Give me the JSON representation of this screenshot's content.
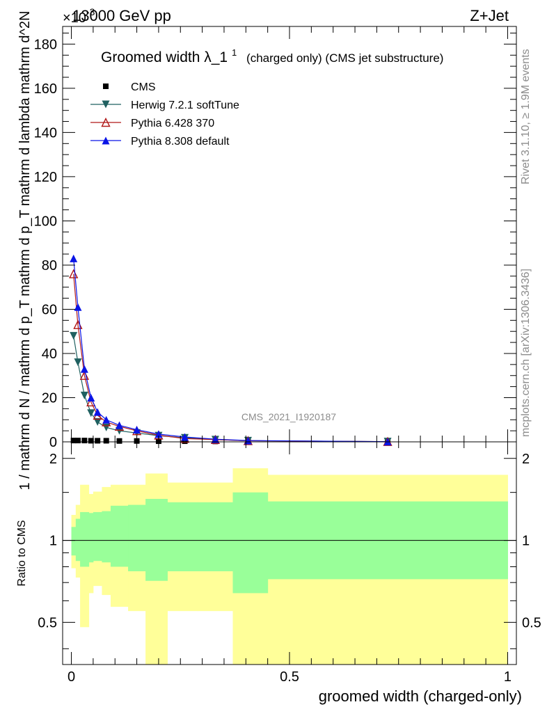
{
  "header": {
    "energy_label": "13000 GeV pp",
    "process_label": "Z+Jet",
    "exponent_label": "×10",
    "exponent_power": "-3"
  },
  "side_labels": {
    "rivet": "Rivet 3.1.10, ≥ 1.9M events",
    "mcplots": "mcplots.cern.ch [arXiv:1306.3436]"
  },
  "watermark": "CMS_2021_I1920187",
  "chart_data": [
    {
      "type": "line",
      "panel": "main",
      "title": "Groomed width",
      "title_symbol": "λ_1",
      "title_sup": "1",
      "title_suffix": "(charged only) (CMS jet substructure)",
      "ylabel": "1 / mathrm d N / mathrm d p_T mathrm d p_T mathrm d lambda mathrm d^2N",
      "xlim": [
        -0.02,
        1.02
      ],
      "ylim": [
        0,
        188
      ],
      "yticks": [
        0,
        20,
        40,
        60,
        80,
        100,
        120,
        140,
        160,
        180
      ],
      "x": [
        0.005,
        0.015,
        0.03,
        0.045,
        0.06,
        0.08,
        0.11,
        0.15,
        0.2,
        0.26,
        0.33,
        0.405,
        0.725
      ],
      "series": [
        {
          "name": "CMS",
          "color": "#000000",
          "marker": "square",
          "values": [
            0.6,
            0.6,
            0.6,
            0.5,
            0.5,
            0.5,
            0.4,
            0.4,
            0.3,
            0.3,
            0.2,
            0.2,
            0.1
          ]
        },
        {
          "name": "Herwig 7.2.1 softTune",
          "color": "#1f6060",
          "marker": "triangle-down",
          "values": [
            48,
            36,
            21,
            13,
            9,
            6.5,
            5,
            4,
            2.8,
            1.8,
            1,
            0.5,
            0.1
          ]
        },
        {
          "name": "Pythia 6.428 370",
          "color": "#b01818",
          "marker": "triangle-up-open",
          "values": [
            76,
            53,
            30,
            18,
            12,
            9,
            7,
            5,
            3,
            1.5,
            1,
            0.5,
            0.1
          ]
        },
        {
          "name": "Pythia 8.308 default",
          "color": "#0a14e6",
          "marker": "triangle-up",
          "values": [
            83,
            61,
            33,
            20,
            13.5,
            10,
            7.5,
            5.5,
            3.5,
            2.2,
            1.2,
            0.6,
            0.1
          ]
        }
      ]
    },
    {
      "type": "area",
      "panel": "ratio",
      "ylabel": "Ratio to CMS",
      "xlabel": "groomed width (charged-only)",
      "xlim": [
        -0.02,
        1.02
      ],
      "ylim": [
        0.35,
        2.3
      ],
      "yticks": [
        0.5,
        1,
        2
      ],
      "xticks": [
        0,
        0.5,
        1
      ],
      "bins": [
        0,
        0.01,
        0.02,
        0.04,
        0.05,
        0.07,
        0.09,
        0.13,
        0.17,
        0.22,
        0.29,
        0.37,
        0.45,
        1.0
      ],
      "band_stat": {
        "color": "#99ff99",
        "lower": [
          0.88,
          0.84,
          0.8,
          0.83,
          0.84,
          0.83,
          0.8,
          0.77,
          0.71,
          0.77,
          0.77,
          0.64,
          0.72
        ],
        "upper": [
          1.12,
          1.2,
          1.27,
          1.26,
          1.27,
          1.28,
          1.34,
          1.35,
          1.42,
          1.38,
          1.38,
          1.5,
          1.39
        ]
      },
      "band_total": {
        "color": "#ffff99",
        "lower": [
          0.79,
          0.73,
          0.48,
          0.64,
          0.68,
          0.63,
          0.57,
          0.55,
          0.22,
          0.55,
          0.55,
          0.22,
          0.22
        ],
        "upper": [
          1.24,
          1.35,
          1.6,
          1.48,
          1.51,
          1.57,
          1.6,
          1.6,
          1.76,
          1.63,
          1.63,
          1.84,
          1.74
        ]
      },
      "reference": 1
    }
  ]
}
